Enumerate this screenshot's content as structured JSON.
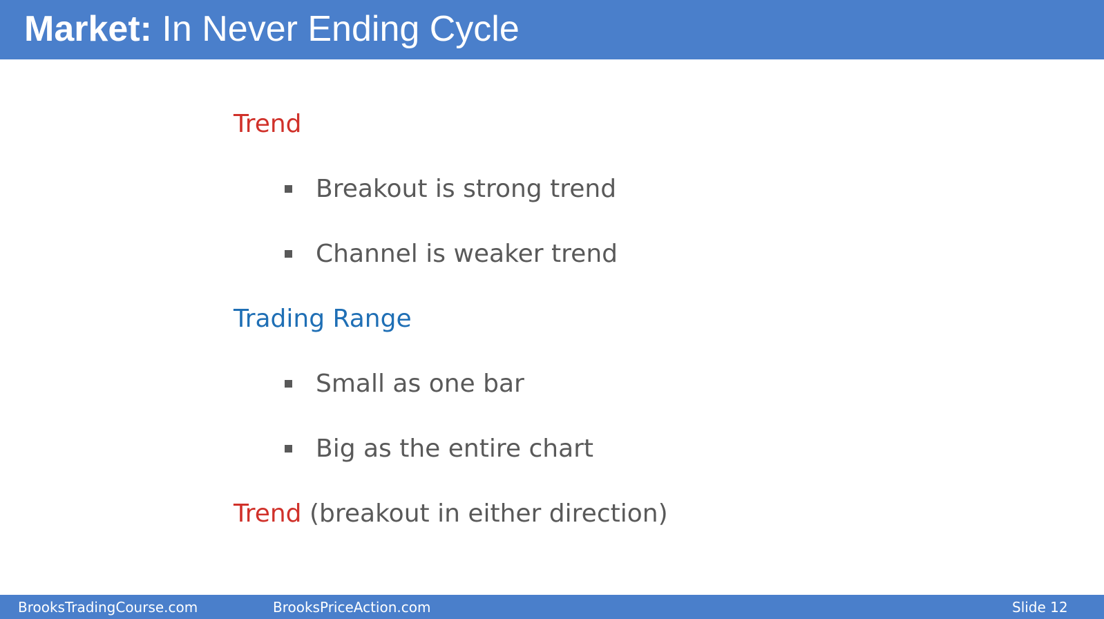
{
  "header": {
    "title_bold": "Market:",
    "title_rest": "In Never Ending Cycle"
  },
  "content": {
    "heading1": "Trend",
    "bullets1": [
      "Breakout is strong trend",
      "Channel is weaker trend"
    ],
    "heading2": "Trading Range",
    "bullets2": [
      "Small as one bar",
      "Big as the entire chart"
    ],
    "heading3": "Trend",
    "heading3_suffix": "(breakout in either direction)"
  },
  "footer": {
    "site1": "BrooksTradingCourse.com",
    "site2": "BrooksPriceAction.com",
    "slide_label": "Slide",
    "slide_number": "12"
  },
  "colors": {
    "bar": "#4a7fcb",
    "heading_red": "#d0312a",
    "heading_blue": "#1f6fb5",
    "body_text": "#595959"
  }
}
